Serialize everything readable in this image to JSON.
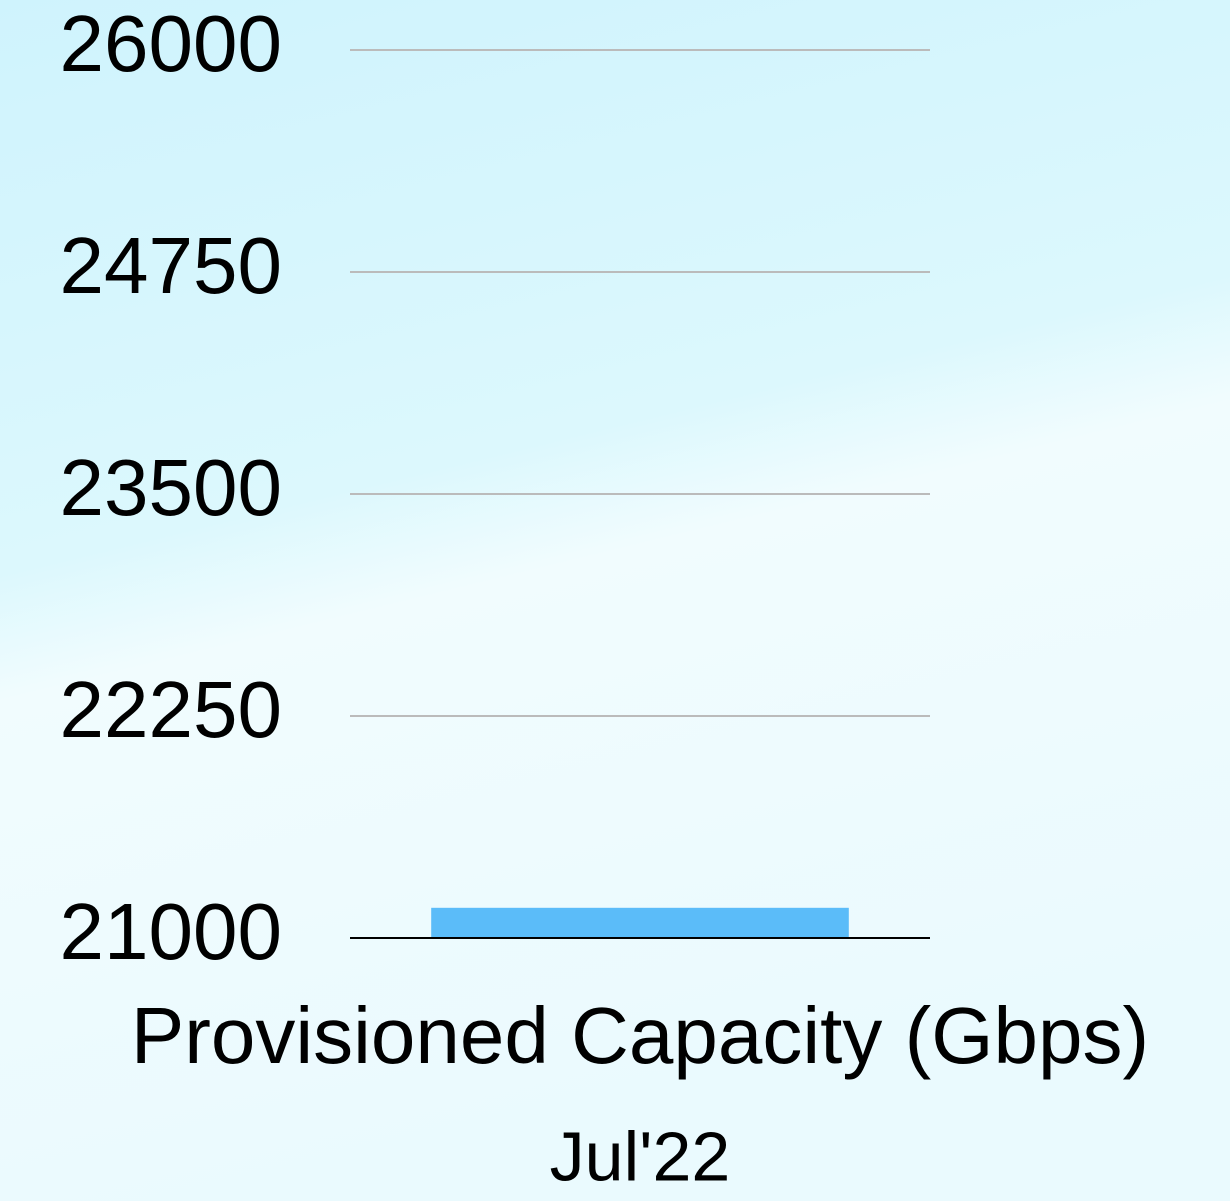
{
  "chart_data": {
    "type": "bar",
    "categories": [
      "Provisioned Capacity (Gbps)"
    ],
    "series": [
      {
        "name": "Jul'22",
        "color": "#5bbcf9",
        "values": [
          21170
        ]
      }
    ],
    "ylim": [
      21000,
      26000
    ],
    "yticks": [
      21000,
      22250,
      23500,
      24750,
      26000
    ],
    "grid": true
  }
}
